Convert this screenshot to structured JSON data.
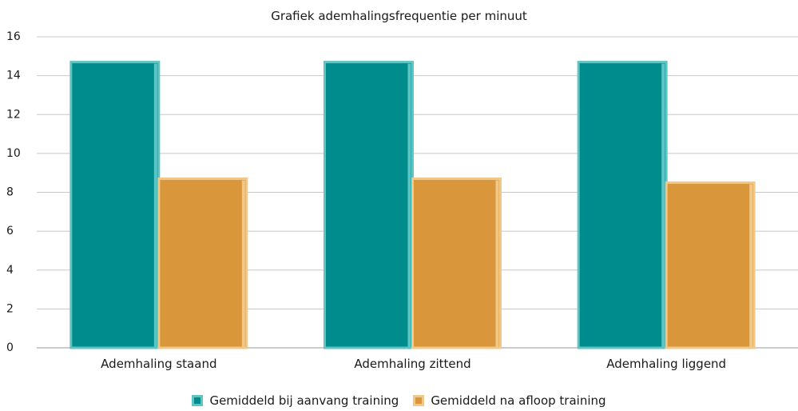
{
  "chart_data": {
    "type": "bar",
    "title": "Grafiek ademhalingsfrequentie per minuut",
    "categories": [
      "Ademhaling staand",
      "Ademhaling zittend",
      "Ademhaling liggend"
    ],
    "series": [
      {
        "name": "Gemiddeld bij aanvang training",
        "values": [
          14.7,
          14.7,
          14.7
        ],
        "color": "#008c8c",
        "edge": "#5fc4c4"
      },
      {
        "name": "Gemiddeld na afloop training",
        "values": [
          8.7,
          8.7,
          8.5
        ],
        "color": "#d9963a",
        "edge": "#f0c98a"
      }
    ],
    "yticks": [
      0,
      2,
      4,
      6,
      8,
      10,
      12,
      14,
      16
    ],
    "ylim": [
      0,
      16
    ],
    "grid": true,
    "legend": "bottom"
  }
}
